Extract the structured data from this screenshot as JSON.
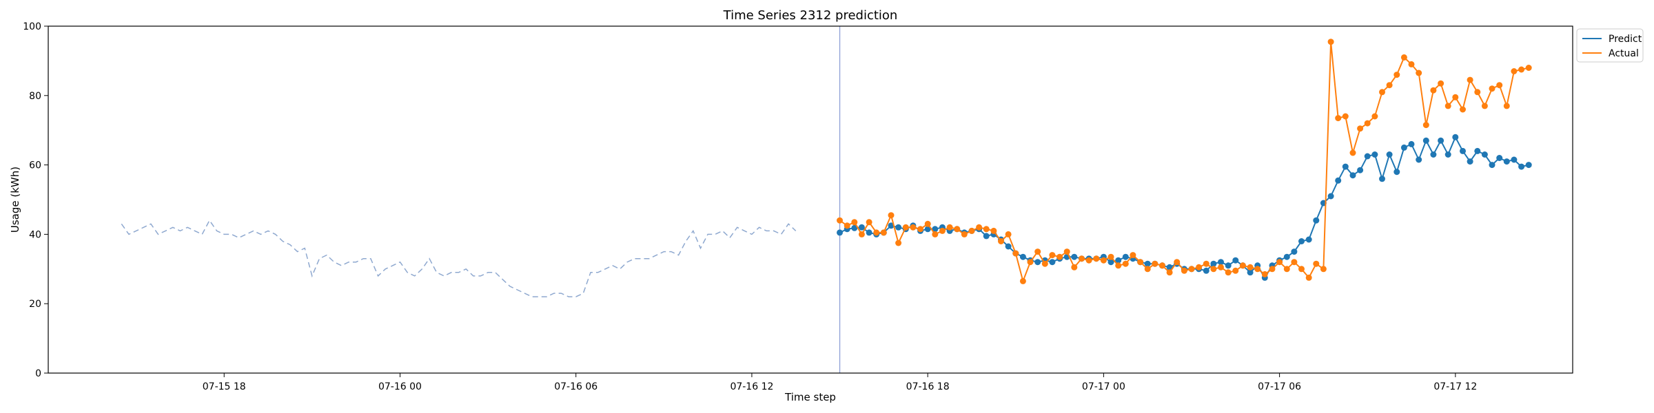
{
  "chart_data": {
    "type": "line",
    "title": "Time Series 2312 prediction",
    "xlabel": "Time step",
    "ylabel": "Usage (kWh)",
    "ylim": [
      0,
      100
    ],
    "yticks": [
      0,
      20,
      40,
      60,
      80,
      100
    ],
    "xlim": [
      "2024-07-15 12:00",
      "2024-07-17 16:00"
    ],
    "xticks": [
      {
        "t": "2024-07-15 18:00",
        "label": "07-15 18"
      },
      {
        "t": "2024-07-16 00:00",
        "label": "07-16 00"
      },
      {
        "t": "2024-07-16 06:00",
        "label": "07-16 06"
      },
      {
        "t": "2024-07-16 12:00",
        "label": "07-16 12"
      },
      {
        "t": "2024-07-16 18:00",
        "label": "07-16 18"
      },
      {
        "t": "2024-07-17 00:00",
        "label": "07-17 00"
      },
      {
        "t": "2024-07-17 06:00",
        "label": "07-17 06"
      },
      {
        "t": "2024-07-17 12:00",
        "label": "07-17 12"
      }
    ],
    "grid": false,
    "legend_position": "top-right (outside)",
    "forecast_start": "2024-07-16 15:00",
    "history": {
      "style": "dashed",
      "color": "#8ea8cf",
      "start": "2024-07-15 14:30",
      "step_minutes": 15,
      "values": [
        43,
        40,
        41,
        42,
        43,
        40,
        41,
        42,
        41,
        42,
        41,
        40,
        44,
        41,
        40,
        40,
        39,
        40,
        41,
        40,
        41,
        40,
        38,
        37,
        35,
        36,
        28,
        33,
        34,
        32,
        31,
        32,
        32,
        33,
        33,
        28,
        30,
        31,
        32,
        29,
        28,
        30,
        33,
        29,
        28,
        29,
        29,
        30,
        28,
        28,
        29,
        29,
        27,
        25,
        24,
        23,
        22,
        22,
        22,
        23,
        23,
        22,
        22,
        23,
        29,
        29,
        30,
        31,
        30,
        32,
        33,
        33,
        33,
        34,
        35,
        35,
        34,
        38,
        41,
        36,
        40,
        40,
        41,
        39,
        42,
        41,
        40,
        42,
        41,
        41,
        40,
        43,
        41
      ]
    },
    "series": [
      {
        "name": "Predict",
        "color": "#1f77b4",
        "start": "2024-07-16 15:00",
        "step_minutes": 15,
        "values": [
          40.5,
          41.5,
          41.8,
          42,
          40.5,
          40.0,
          40.5,
          42.5,
          42.0,
          41.5,
          42.5,
          41,
          41.5,
          41.5,
          42,
          41,
          41.5,
          40.5,
          41,
          41.5,
          39.5,
          40,
          38.5,
          36.5,
          34.5,
          33.5,
          32.5,
          32,
          32.5,
          32,
          33,
          33.5,
          33.5,
          33,
          33,
          33,
          33.5,
          32,
          32.5,
          33.5,
          33,
          32,
          31.5,
          31.5,
          31,
          30.5,
          31.5,
          30,
          30,
          30,
          29.5,
          31.5,
          32,
          31,
          32.5,
          31,
          29,
          31,
          27.5,
          31,
          32.5,
          33.5,
          35,
          38,
          38.5,
          44,
          49,
          51,
          55.5,
          59.5,
          57,
          58.5,
          62.5,
          63,
          56,
          63,
          58,
          65,
          66,
          61.5,
          67,
          63,
          67,
          63,
          68,
          64,
          61,
          64,
          63,
          60,
          62,
          61,
          61.5,
          59.5,
          60
        ]
      },
      {
        "name": "Actual",
        "color": "#ff7f0e",
        "start": "2024-07-16 15:00",
        "step_minutes": 15,
        "values": [
          44,
          42.5,
          43.5,
          40,
          43.5,
          40.5,
          40.5,
          45.5,
          37.5,
          42,
          42,
          41.5,
          43,
          40,
          41,
          42,
          41.5,
          40,
          41,
          42,
          41.5,
          41,
          38,
          40,
          34.5,
          26.5,
          32,
          35,
          31.5,
          34,
          33.5,
          35,
          30.5,
          33,
          32.5,
          33,
          32.5,
          33.5,
          31,
          31.5,
          34,
          32,
          30,
          31.5,
          31,
          29,
          32,
          29.5,
          30,
          30.5,
          31.5,
          30,
          30.5,
          29,
          29.5,
          31,
          30.5,
          30,
          28.5,
          30,
          32,
          30,
          32,
          30,
          27.5,
          31.5,
          30,
          95.5,
          73.5,
          74,
          63.5,
          70.5,
          72,
          74,
          81,
          83,
          86,
          91,
          89,
          86.5,
          71.5,
          81.5,
          83.5,
          77,
          79.5,
          76,
          84.5,
          81,
          77,
          82,
          83,
          77,
          87,
          87.5,
          88
        ]
      }
    ]
  }
}
